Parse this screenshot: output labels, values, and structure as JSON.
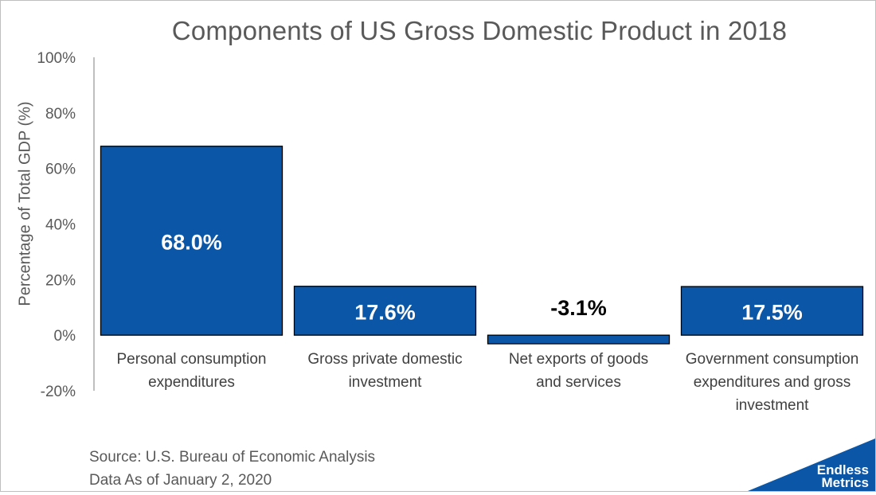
{
  "chart_data": {
    "type": "bar",
    "title": "Components of US Gross Domestic Product in 2018",
    "ylabel": "Percentage of Total GDP (%)",
    "xlabel": "",
    "categories": [
      "Personal consumption expenditures",
      "Gross private domestic investment",
      "Net exports of goods and services",
      "Government consumption expenditures and gross investment"
    ],
    "values": [
      68.0,
      17.6,
      -3.1,
      17.5
    ],
    "data_labels": [
      "68.0%",
      "17.6%",
      "-3.1%",
      "17.5%"
    ],
    "ylim": [
      -20,
      100
    ],
    "yticks": [
      "-20%",
      "0%",
      "20%",
      "40%",
      "60%",
      "80%",
      "100%"
    ],
    "grid": false,
    "legend": "none",
    "bar_color": "#0b56a6"
  },
  "source_line": "Source: U.S. Bureau of Economic Analysis",
  "date_line": "Data As of January 2, 2020",
  "logo": {
    "line1": "Endless",
    "line2": "Metrics",
    "color": "#0b56a6"
  }
}
